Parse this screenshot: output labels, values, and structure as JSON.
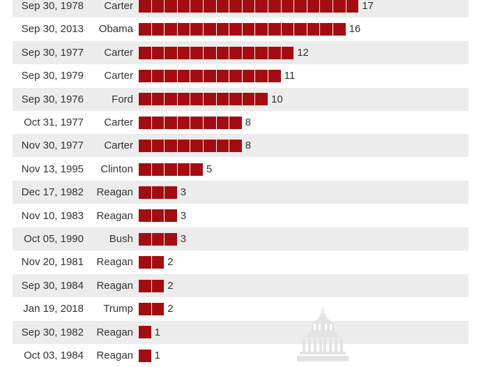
{
  "chart_data": {
    "type": "bar",
    "orientation": "horizontal",
    "categories": [
      {
        "date": "Sep 30, 1978",
        "president": "Carter"
      },
      {
        "date": "Sep 30, 2013",
        "president": "Obama"
      },
      {
        "date": "Sep 30, 1977",
        "president": "Carter"
      },
      {
        "date": "Sep 30, 1979",
        "president": "Carter"
      },
      {
        "date": "Sep 30, 1976",
        "president": "Ford"
      },
      {
        "date": "Oct 31, 1977",
        "president": "Carter"
      },
      {
        "date": "Nov 30, 1977",
        "president": "Carter"
      },
      {
        "date": "Nov 13, 1995",
        "president": "Clinton"
      },
      {
        "date": "Dec 17, 1982",
        "president": "Reagan"
      },
      {
        "date": "Nov 10, 1983",
        "president": "Reagan"
      },
      {
        "date": "Oct 05, 1990",
        "president": "Bush"
      },
      {
        "date": "Nov 20, 1981",
        "president": "Reagan"
      },
      {
        "date": "Sep 30, 1984",
        "president": "Reagan"
      },
      {
        "date": "Jan 19, 2018",
        "president": "Trump"
      },
      {
        "date": "Sep 30, 1982",
        "president": "Reagan"
      },
      {
        "date": "Oct 03, 1984",
        "president": "Reagan"
      }
    ],
    "values": [
      17,
      16,
      12,
      11,
      10,
      8,
      8,
      5,
      3,
      3,
      3,
      2,
      2,
      2,
      1,
      1
    ],
    "bar_color": "#a30d12",
    "title": "",
    "xlabel": "",
    "ylabel": "",
    "grid": false,
    "legend": "none"
  },
  "decoration": {
    "icon": "capitol-building-icon",
    "color": "#e3e3e3"
  }
}
